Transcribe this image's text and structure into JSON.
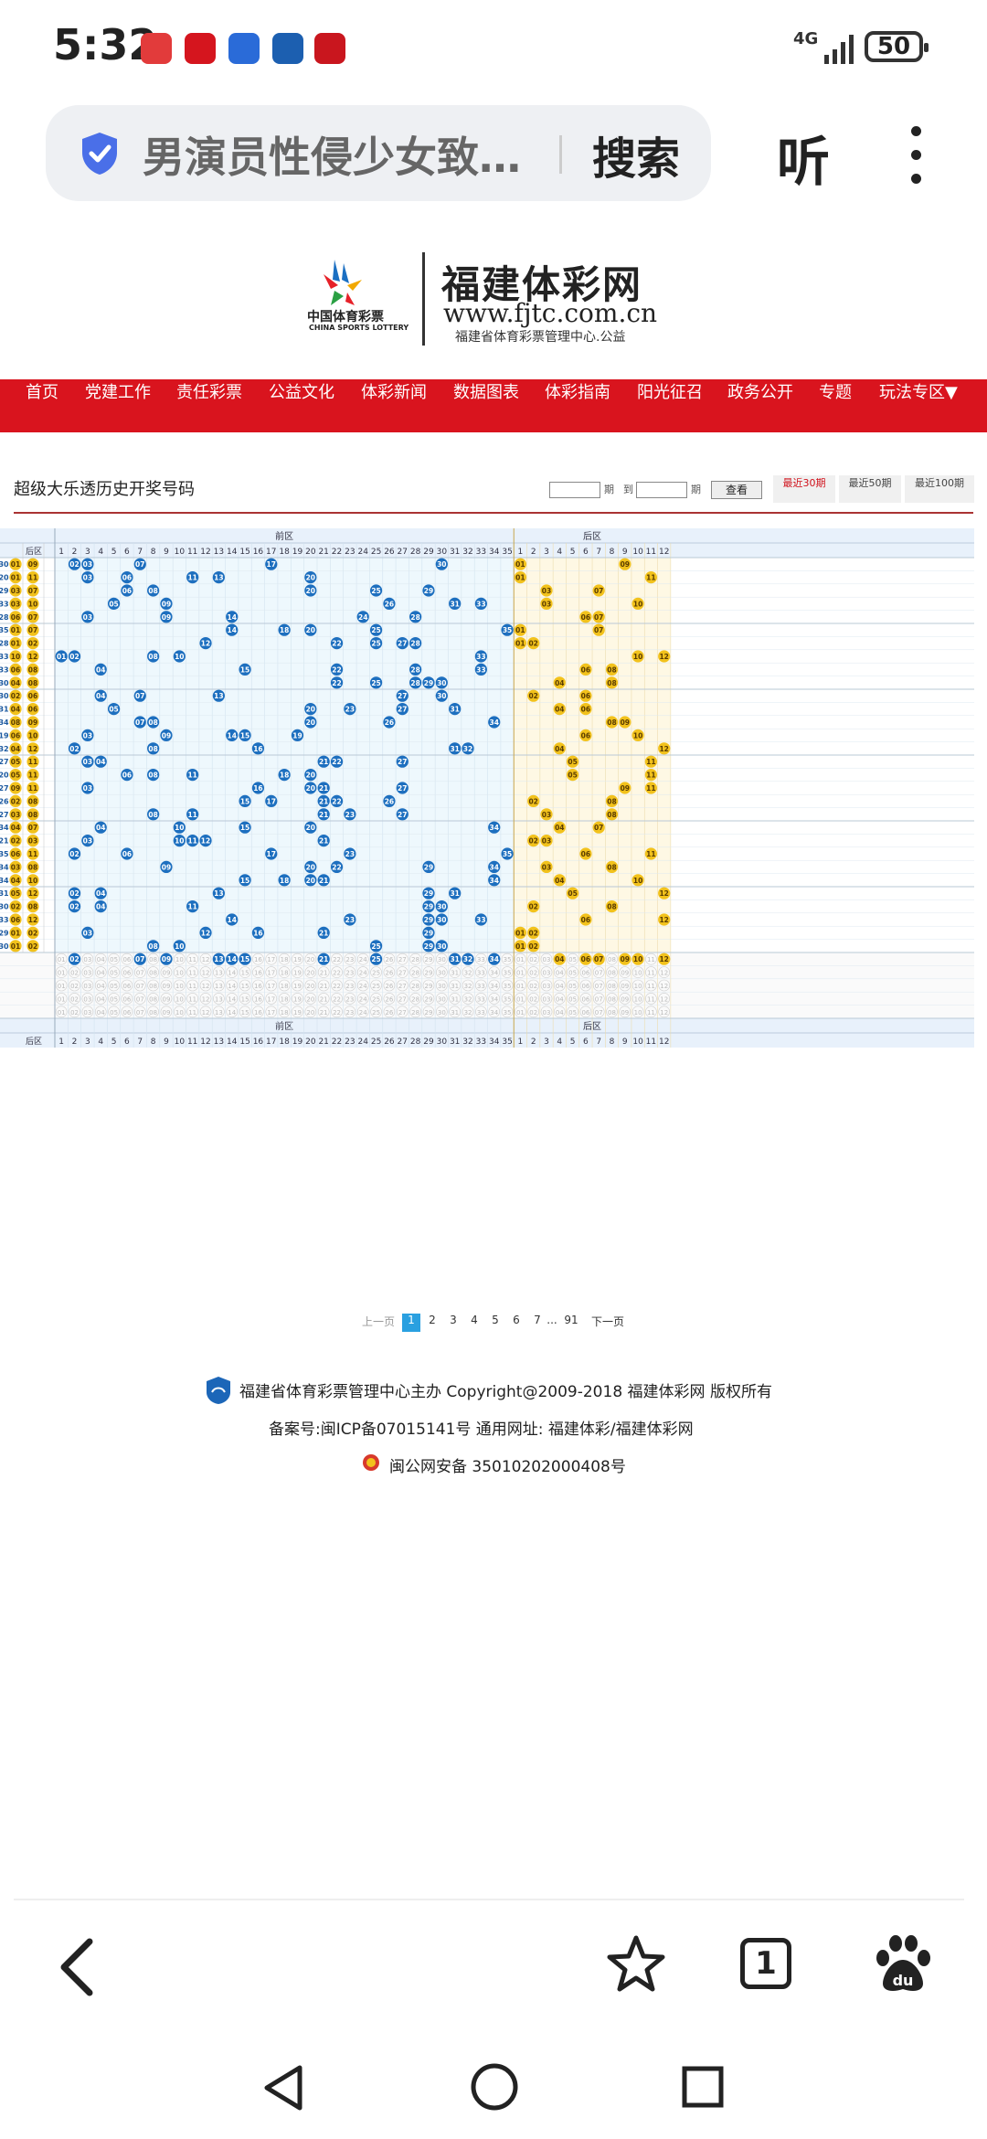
{
  "status_bar": {
    "time": "5:32",
    "network": "4G",
    "battery": "50",
    "app_icons": [
      {
        "name": "huawei-app-icon",
        "color": "#e23b3b"
      },
      {
        "name": "lottery-app-icon",
        "color": "#d5151e"
      },
      {
        "name": "blue-app-icon",
        "color": "#2a6bd8"
      },
      {
        "name": "ccb-app-icon",
        "color": "#1c5fb0"
      },
      {
        "name": "bank-app-icon",
        "color": "#c9161e"
      }
    ]
  },
  "browser": {
    "query": "男演员性侵少女致…",
    "search_label": "搜索",
    "listen_label": "听"
  },
  "site": {
    "logo_cn": "中国体育彩票",
    "logo_en": "CHINA SPORTS LOTTERY",
    "name": "福建体彩网",
    "url": "www.fjtc.com.cn",
    "subtitle": "福建省体育彩票管理中心.公益"
  },
  "nav": [
    "首页",
    "党建工作",
    "责任彩票",
    "公益文化",
    "体彩新闻",
    "数据图表",
    "体彩指南",
    "阳光征召",
    "政务公开",
    "专题",
    "玩法专区▼"
  ],
  "section": {
    "title": "超级大乐透历史开奖号码",
    "period_label": "期",
    "to_label": "到",
    "query_button": "查看",
    "tabs": [
      "最近30期",
      "最近50期",
      "最近100期"
    ],
    "active_tab": 0
  },
  "table": {
    "front_header": "前区",
    "back_header": "后区",
    "back_col_label": "后区",
    "front_count": 35,
    "back_count": 12,
    "rows": [
      {
        "f": [
          "30",
          "01"
        ],
        "b": [
          "09"
        ],
        "fr": [
          2,
          3,
          7,
          17,
          30
        ],
        "br": [
          1,
          9
        ]
      },
      {
        "f": [
          "20",
          "01"
        ],
        "b": [
          "11"
        ],
        "fr": [
          3,
          6,
          11,
          13,
          20
        ],
        "br": [
          1,
          11
        ]
      },
      {
        "f": [
          "29",
          "03"
        ],
        "b": [
          "07"
        ],
        "fr": [
          6,
          8,
          20,
          25,
          29
        ],
        "br": [
          3,
          7
        ]
      },
      {
        "f": [
          "33",
          "03"
        ],
        "b": [
          "10"
        ],
        "fr": [
          5,
          9,
          26,
          31,
          33
        ],
        "br": [
          3,
          10
        ]
      },
      {
        "f": [
          "28",
          "06"
        ],
        "b": [
          "07"
        ],
        "fr": [
          3,
          9,
          14,
          24,
          28
        ],
        "br": [
          6,
          7
        ]
      },
      {
        "f": [
          "35",
          "01"
        ],
        "b": [
          "07"
        ],
        "fr": [
          14,
          18,
          20,
          25,
          35
        ],
        "br": [
          1,
          7
        ]
      },
      {
        "f": [
          "28",
          "01"
        ],
        "b": [
          "02"
        ],
        "fr": [
          12,
          22,
          25,
          27,
          28
        ],
        "br": [
          1,
          2
        ]
      },
      {
        "f": [
          "33",
          "10"
        ],
        "b": [
          "12"
        ],
        "fr": [
          1,
          2,
          8,
          10,
          33
        ],
        "br": [
          10,
          12
        ]
      },
      {
        "f": [
          "33",
          "06"
        ],
        "b": [
          "08"
        ],
        "fr": [
          4,
          15,
          22,
          28,
          33
        ],
        "br": [
          6,
          8
        ]
      },
      {
        "f": [
          "30",
          "04"
        ],
        "b": [
          "08"
        ],
        "fr": [
          22,
          25,
          28,
          29,
          30
        ],
        "br": [
          4,
          8
        ]
      },
      {
        "f": [
          "30",
          "02"
        ],
        "b": [
          "06"
        ],
        "fr": [
          4,
          7,
          13,
          27,
          30
        ],
        "br": [
          2,
          6
        ]
      },
      {
        "f": [
          "31",
          "04"
        ],
        "b": [
          "06"
        ],
        "fr": [
          5,
          20,
          23,
          27,
          31
        ],
        "br": [
          4,
          6
        ]
      },
      {
        "f": [
          "34",
          "08"
        ],
        "b": [
          "09"
        ],
        "fr": [
          7,
          8,
          20,
          26,
          34
        ],
        "br": [
          8,
          9
        ]
      },
      {
        "f": [
          "19",
          "06"
        ],
        "b": [
          "10"
        ],
        "fr": [
          3,
          9,
          14,
          15,
          19
        ],
        "br": [
          6,
          10
        ]
      },
      {
        "f": [
          "32",
          "04"
        ],
        "b": [
          "12"
        ],
        "fr": [
          2,
          8,
          16,
          31,
          32
        ],
        "br": [
          4,
          12
        ]
      },
      {
        "f": [
          "27",
          "05"
        ],
        "b": [
          "11"
        ],
        "fr": [
          3,
          4,
          21,
          22,
          27
        ],
        "br": [
          5,
          11
        ]
      },
      {
        "f": [
          "20",
          "05"
        ],
        "b": [
          "11"
        ],
        "fr": [
          6,
          8,
          11,
          18,
          20
        ],
        "br": [
          5,
          11
        ]
      },
      {
        "f": [
          "27",
          "09"
        ],
        "b": [
          "11"
        ],
        "fr": [
          3,
          16,
          20,
          21,
          27
        ],
        "br": [
          9,
          11
        ]
      },
      {
        "f": [
          "26",
          "02"
        ],
        "b": [
          "08"
        ],
        "fr": [
          15,
          17,
          21,
          22,
          26
        ],
        "br": [
          2,
          8
        ]
      },
      {
        "f": [
          "27",
          "03"
        ],
        "b": [
          "08"
        ],
        "fr": [
          8,
          11,
          21,
          23,
          27
        ],
        "br": [
          3,
          8
        ]
      },
      {
        "f": [
          "34",
          "04"
        ],
        "b": [
          "07"
        ],
        "fr": [
          4,
          10,
          15,
          20,
          34
        ],
        "br": [
          4,
          7
        ]
      },
      {
        "f": [
          "21",
          "02"
        ],
        "b": [
          "03"
        ],
        "fr": [
          3,
          10,
          11,
          12,
          21
        ],
        "br": [
          2,
          3
        ]
      },
      {
        "f": [
          "35",
          "06"
        ],
        "b": [
          "11"
        ],
        "fr": [
          2,
          6,
          17,
          23,
          35
        ],
        "br": [
          6,
          11
        ]
      },
      {
        "f": [
          "34",
          "03"
        ],
        "b": [
          "08"
        ],
        "fr": [
          9,
          20,
          22,
          29,
          34
        ],
        "br": [
          3,
          8
        ]
      },
      {
        "f": [
          "34",
          "04"
        ],
        "b": [
          "10"
        ],
        "fr": [
          15,
          18,
          20,
          21,
          34
        ],
        "br": [
          4,
          10
        ]
      },
      {
        "f": [
          "31",
          "05"
        ],
        "b": [
          "12"
        ],
        "fr": [
          2,
          4,
          13,
          29,
          31
        ],
        "br": [
          5,
          12
        ]
      },
      {
        "f": [
          "30",
          "02"
        ],
        "b": [
          "08"
        ],
        "fr": [
          2,
          4,
          11,
          29,
          30
        ],
        "br": [
          2,
          8
        ]
      },
      {
        "f": [
          "33",
          "06"
        ],
        "b": [
          "12"
        ],
        "fr": [
          14,
          23,
          29,
          30,
          33
        ],
        "br": [
          6,
          12
        ]
      },
      {
        "f": [
          "29",
          "01"
        ],
        "b": [
          "02"
        ],
        "fr": [
          3,
          12,
          16,
          21,
          29
        ],
        "br": [
          1,
          2
        ]
      },
      {
        "f": [
          "30",
          "01"
        ],
        "b": [
          "02"
        ],
        "fr": [
          8,
          10,
          25,
          29,
          30
        ],
        "br": [
          1,
          2
        ]
      }
    ],
    "stat_front": [
      2,
      7,
      9,
      13,
      14,
      15,
      21,
      25,
      31,
      32,
      34
    ],
    "stat_back": [
      4,
      6,
      7,
      9,
      10,
      12
    ]
  },
  "pagination": {
    "prev": "上一页",
    "pages": [
      "1",
      "2",
      "3",
      "4",
      "5",
      "6",
      "7"
    ],
    "ellipsis": "...",
    "last": "91",
    "next": "下一页",
    "current": "1"
  },
  "footer": {
    "line1": "福建省体育彩票管理中心主办 Copyright@2009-2018 福建体彩网 版权所有",
    "line2": "备案号:闽ICP备07015141号    通用网址:  福建体彩/福建体彩网",
    "line3": "闽公网安备 35010202000408号"
  },
  "bottom_bar": {
    "tab_count": "1"
  },
  "colors": {
    "nav_red": "#d9141e",
    "front_bg": "#eef8fd",
    "back_bg": "#fef8e4",
    "blue_ball": "#1d6fbf",
    "yellow_ball": "#f2c21c",
    "page_active": "#2aa0e0"
  }
}
